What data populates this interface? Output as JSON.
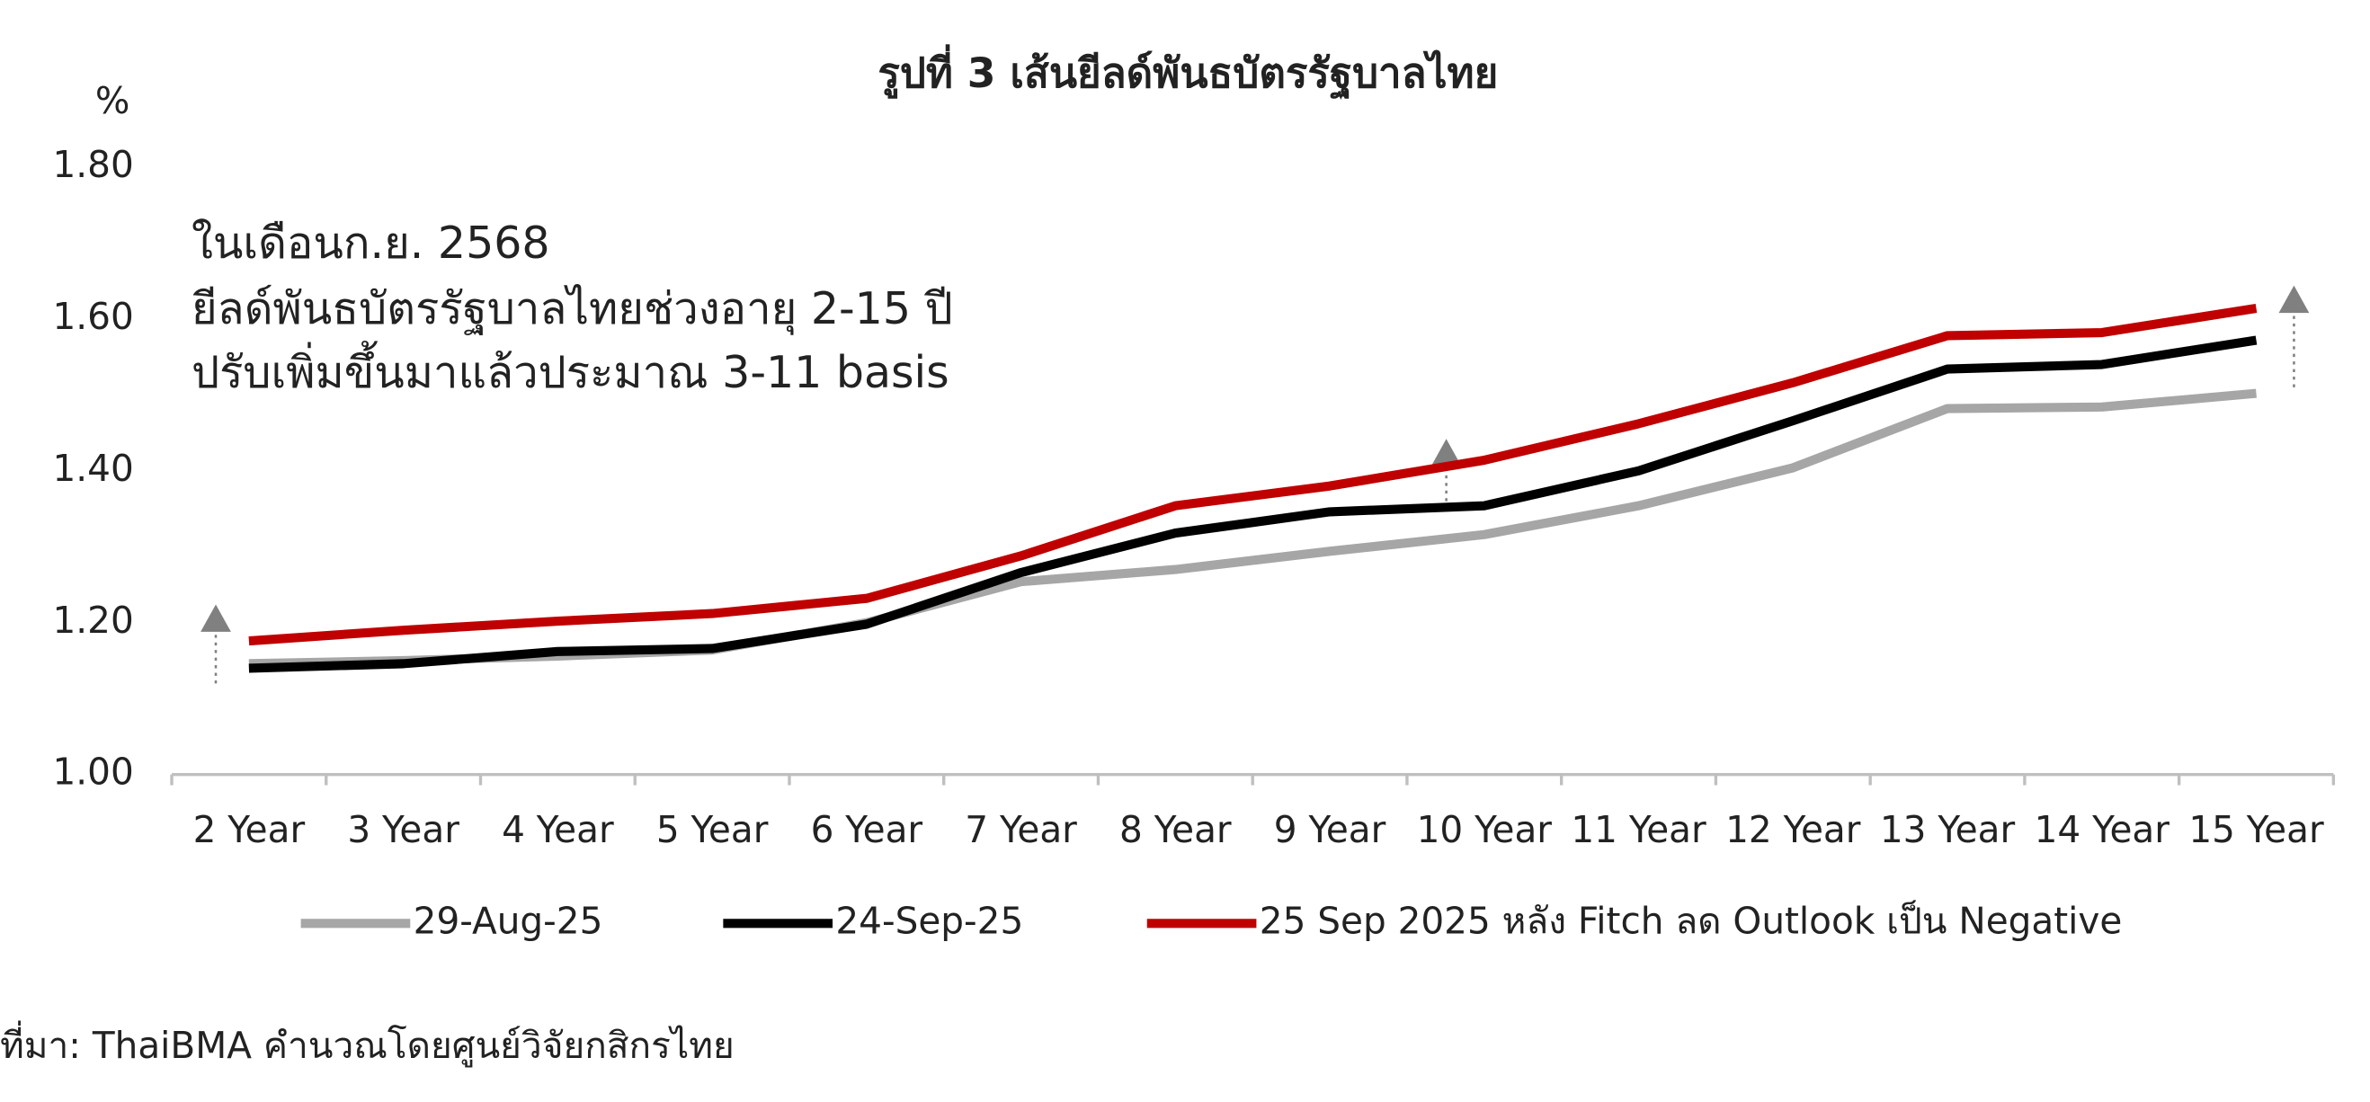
{
  "chart_data": {
    "type": "line",
    "title": "รูปที่ 3 เส้นยีลด์พันธบัตรรัฐบาลไทย",
    "y_label": "%",
    "annotation": [
      "ในเดือนก.ย. 2568",
      "ยีลด์พันธบัตรรัฐบาลไทยช่วงอายุ 2-15 ปี",
      "ปรับเพิ่มขึ้นมาแล้วประมาณ 3-11 basis"
    ],
    "source": "ที่มา: ThaiBMA คำนวณโดยศูนย์วิจัยกสิกรไทย",
    "categories": [
      "2 Year",
      "3 Year",
      "4 Year",
      "5 Year",
      "6 Year",
      "7 Year",
      "8 Year",
      "9 Year",
      "10 Year",
      "11 Year",
      "12 Year",
      "13 Year",
      "14 Year",
      "15 Year"
    ],
    "series": [
      {
        "name": "29-Aug-25",
        "color": "#a6a6a6",
        "values": [
          1.146,
          1.15,
          1.156,
          1.164,
          1.2,
          1.254,
          1.27,
          1.294,
          1.316,
          1.354,
          1.404,
          1.482,
          1.484,
          1.502
        ]
      },
      {
        "name": "24-Sep-25",
        "color": "#000000",
        "values": [
          1.14,
          1.146,
          1.162,
          1.166,
          1.198,
          1.266,
          1.318,
          1.346,
          1.354,
          1.4,
          1.466,
          1.534,
          1.54,
          1.572
        ]
      },
      {
        "name": "25 Sep 2025 หลัง Fitch ลด Outlook เป็น Negative",
        "color": "#c00000",
        "values": [
          1.176,
          1.19,
          1.202,
          1.212,
          1.232,
          1.288,
          1.354,
          1.38,
          1.414,
          1.462,
          1.516,
          1.578,
          1.582,
          1.614
        ]
      }
    ],
    "ylim": [
      1.0,
      1.8
    ],
    "yticks": [
      {
        "value": 1.0,
        "label": "1.00"
      },
      {
        "value": 1.2,
        "label": "1.20"
      },
      {
        "value": 1.4,
        "label": "1.40"
      },
      {
        "value": 1.6,
        "label": "1.60"
      },
      {
        "value": 1.8,
        "label": "1.80"
      }
    ],
    "grid": false,
    "legend": "bottom"
  }
}
